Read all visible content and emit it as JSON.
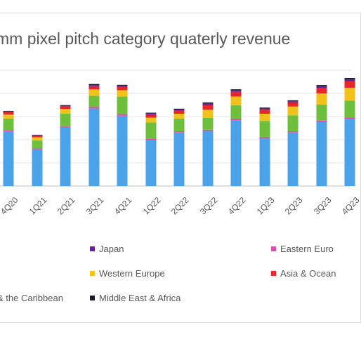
{
  "chart_data": {
    "type": "bar",
    "stacked": true,
    "title": "mm pixel pitch category quaterly revenue",
    "categories": [
      "4Q20",
      "1Q21",
      "2Q21",
      "3Q21",
      "4Q21",
      "1Q22",
      "2Q22",
      "3Q22",
      "4Q22",
      "1Q23",
      "2Q23",
      "3Q23",
      "4Q23"
    ],
    "ylim": [
      0,
      145
    ],
    "grid": true,
    "series": [
      {
        "name": "",
        "color": "#4aa3e8",
        "values": [
          68,
          46,
          73,
          97,
          88,
          58,
          67,
          69,
          82,
          60,
          67,
          80,
          84
        ]
      },
      {
        "name": "Eastern Euro",
        "color": "#e04bb0",
        "values": [
          1.5,
          1,
          1.5,
          2,
          2,
          1.5,
          1.5,
          1.5,
          2,
          1.5,
          1.5,
          2,
          2
        ]
      },
      {
        "name": "",
        "color": "#6ebf3b",
        "values": [
          15,
          10,
          16,
          14,
          22,
          20,
          16,
          15,
          17,
          20,
          20,
          20,
          21
        ]
      },
      {
        "name": "Western Europe",
        "color": "#f2c21b",
        "values": [
          5,
          4,
          6,
          8,
          8,
          6,
          6,
          10,
          11,
          9,
          11,
          14,
          16
        ]
      },
      {
        "name": "Asia & Ocean",
        "color": "#e8262a",
        "values": [
          3,
          2,
          3,
          4,
          4,
          4,
          4,
          6,
          6,
          5,
          5,
          7,
          8
        ]
      },
      {
        "name": "Japan",
        "color": "#6a1f9c",
        "values": [
          0.8,
          0.6,
          1,
          1.5,
          1.5,
          1.3,
          1.3,
          1.8,
          1.8,
          1.5,
          1.6,
          2,
          2.5
        ]
      },
      {
        "name": "Middle East & Africa",
        "color": "#1a1a2e",
        "values": [
          0.8,
          0.6,
          0.8,
          1.2,
          1.2,
          1,
          1,
          1.3,
          1.3,
          1.2,
          1.2,
          1.5,
          1.8
        ]
      }
    ],
    "legend": [
      {
        "label": "Japan",
        "color": "#6a1f9c"
      },
      {
        "label": "Eastern Euro",
        "color": "#e04bb0"
      },
      {
        "label": "Western Europe",
        "color": "#f2c21b"
      },
      {
        "label": "Asia & Ocean",
        "color": "#e8262a"
      },
      {
        "label": "& the Caribbean",
        "color": "#4aa3e8"
      },
      {
        "label": "Middle East & Africa",
        "color": "#1a1a2e"
      }
    ]
  }
}
